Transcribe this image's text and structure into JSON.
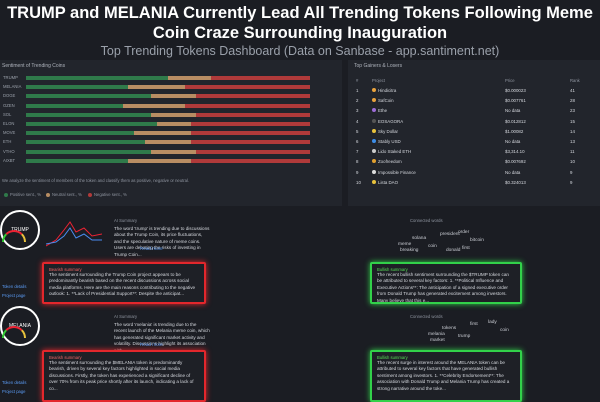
{
  "header": {
    "title": "TRUMP and MELANIA Currently Lead All Trending Tokens Following Meme Coin Craze Surrounding Inauguration",
    "subtitle": "Top Trending Tokens Dashboard (Data on Sanbase - app.santiment.net)"
  },
  "sentiment": {
    "title": "Sentiment of Trending Coins",
    "categories": [
      "TRUMP",
      "MELANIA",
      "DOGE",
      "OZEN",
      "SOL",
      "ELON",
      "MOVE",
      "ETH",
      "VTHO",
      "AIXBT"
    ],
    "series": [
      {
        "name": "Positive sent., %",
        "color": "#2f7a4a",
        "values": [
          50,
          36,
          44,
          34,
          44,
          46,
          38,
          42,
          44,
          36
        ]
      },
      {
        "name": "Neutral sent., %",
        "color": "#b88d63",
        "values": [
          15,
          20,
          16,
          22,
          16,
          12,
          20,
          16,
          16,
          22
        ]
      },
      {
        "name": "Negative sent., %",
        "color": "#b03a3a",
        "values": [
          35,
          44,
          40,
          44,
          40,
          42,
          42,
          42,
          40,
          42
        ]
      }
    ],
    "note": "We analyze the sentiment of members of the token and classify them as positive, negative or neutral."
  },
  "gainers": {
    "title": "Top Gainers & Losers",
    "columns": [
      "#",
      "Project",
      "Price",
      "Rank"
    ],
    "rows": [
      [
        "1",
        "Hindicitra",
        "$0.000023",
        "41"
      ],
      [
        "2",
        "SafCoin",
        "$0.007761",
        "28"
      ],
      [
        "3",
        "Ethe",
        "No data",
        "23"
      ],
      [
        "4",
        "EOSAGORA",
        "$0.012812",
        "15"
      ],
      [
        "5",
        "Sky Dollar",
        "$1.00082",
        "14"
      ],
      [
        "6",
        "Stably USD",
        "No data",
        "13"
      ],
      [
        "7",
        "Lido Staked ETH",
        "$3,314.10",
        "11"
      ],
      [
        "8",
        "Zoofreedom",
        "$0.007692",
        "10"
      ],
      [
        "9",
        "Impossible Finance",
        "No data",
        "9"
      ],
      [
        "10",
        "Lista DAO",
        "$0.324013",
        "9"
      ]
    ]
  },
  "cards": [
    {
      "token": "TRUMP",
      "links": [
        "Token details",
        "Project page"
      ],
      "ai_label": "AI Summary",
      "ai_text": "The word 'trump' is trending due to discussions about the Trump Coin, its price fluctuations, and the speculative nature of meme coins. Users are debating the risks of investing in Trump Coin...",
      "read_more": "Read more",
      "words_label": "Connected words",
      "words": [
        "solana",
        "president",
        "meme",
        "order",
        "bitcoin",
        "breaking",
        "coin",
        "donald",
        "first"
      ],
      "bearish_label": "Bearish summary",
      "bearish_text": "The sentiment surrounding the Trump Coin project appears to be predominantly bearish based on the recent discussions across social media platforms. Here are the main reasons contributing to the negative outlook: 1. **Lack of Presidential Support**: Despite the anticipat...",
      "bullish_label": "Bullish summary",
      "bullish_text": "The recent bullish sentiment surrounding the $TRUMP token can be attributed to several key factors: 1. **Political Influence and Executive Actions**: The anticipation of a signed executive order from Donald Trump has generated excitement among investors. Many believe that this e..."
    },
    {
      "token": "MELANIA",
      "links": [
        "Token details",
        "Project page"
      ],
      "ai_label": "AI Summary",
      "ai_text": "The word 'melania' is trending due to the recent launch of the Melania meme coin, which has generated significant market activity and volatility. Discussions highlight its association with...",
      "read_more": "Read more",
      "words_label": "Connected words",
      "words": [
        "tokens",
        "first",
        "melania",
        "lady",
        "coin",
        "market",
        "trump"
      ],
      "bearish_label": "Bearish summary",
      "bearish_text": "The sentiment surrounding the $MELANIA token is predominantly bearish, driven by several key factors highlighted in social media discussions. Firstly, the token has experienced a significant decline of over 70% from its peak price shortly after its launch, indicating a lack of co...",
      "bullish_label": "Bullish summary",
      "bullish_text": "The recent surge in interest around the MELANIA token can be attributed to several key factors that have generated bullish sentiment among investors. 1. **Celebrity Endorsement**: The association with Donald Trump and Melania Trump has created a strong narrative around the toke..."
    }
  ]
}
